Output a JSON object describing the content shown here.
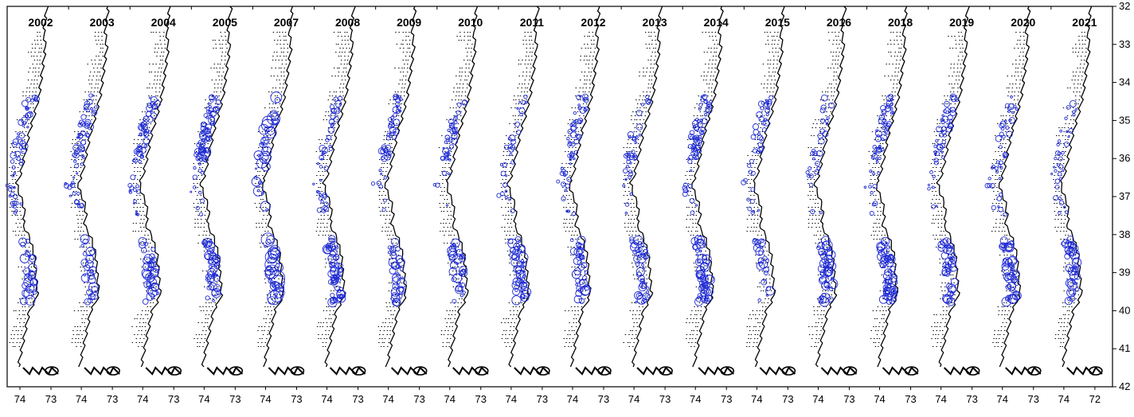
{
  "figure": {
    "years": [
      "2002",
      "2003",
      "2004",
      "2005",
      "2007",
      "2008",
      "2009",
      "2010",
      "2011",
      "2012",
      "2013",
      "2014",
      "2015",
      "2016",
      "2018",
      "2019",
      "2020",
      "2021"
    ],
    "latitude_ticks": [
      "32",
      "33",
      "34",
      "35",
      "36",
      "37",
      "38",
      "39",
      "40",
      "41",
      "42"
    ],
    "longitude_ticks": [
      "74",
      "73",
      "74",
      "73",
      "74",
      "73",
      "74",
      "73",
      "74",
      "73",
      "74",
      "73",
      "74",
      "73",
      "74",
      "73",
      "74",
      "73",
      "74",
      "73",
      "74",
      "73",
      "74",
      "73",
      "74",
      "73",
      "74",
      "73",
      "74",
      "73",
      "74",
      "73",
      "74",
      "73",
      "74",
      "72"
    ],
    "colors": {
      "coast": "#000000",
      "bubble": "#1f2bd6",
      "station_dot": "#000000"
    }
  }
}
